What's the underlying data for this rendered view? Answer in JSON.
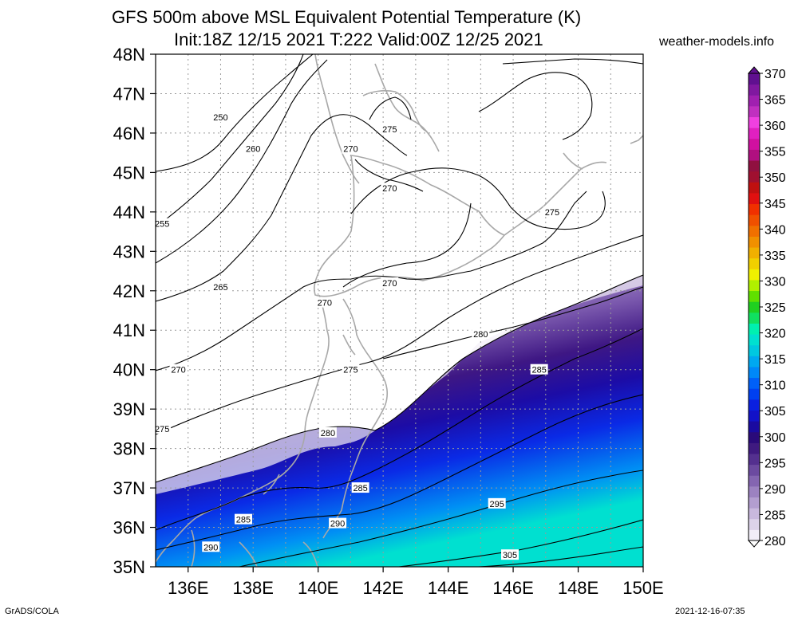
{
  "title_line1": "GFS 500m above MSL Equivalent Potential Temperature (K)",
  "title_line2": "Init:18Z 12/15 2021 T:222 Valid:00Z 12/25 2021",
  "credit": "weather-models.info",
  "footer_left": "GrADS/COLA",
  "footer_right": "2021-12-16-07:35",
  "map": {
    "lon_range": [
      135,
      150
    ],
    "lat_range": [
      35,
      48
    ],
    "lat_labels": [
      "35N",
      "36N",
      "37N",
      "38N",
      "39N",
      "40N",
      "41N",
      "42N",
      "43N",
      "44N",
      "45N",
      "46N",
      "47N",
      "48N"
    ],
    "lon_labels": [
      "136E",
      "138E",
      "140E",
      "142E",
      "144E",
      "146E",
      "148E",
      "150E"
    ],
    "lon_label_values": [
      136,
      138,
      140,
      142,
      144,
      146,
      148,
      150
    ]
  },
  "colorbar": {
    "labels": [
      "280",
      "285",
      "290",
      "295",
      "300",
      "305",
      "310",
      "315",
      "320",
      "325",
      "330",
      "335",
      "340",
      "345",
      "350",
      "355",
      "360",
      "365",
      "370"
    ],
    "colors": [
      "#f2eef8",
      "#ddd3ea",
      "#c9b8de",
      "#b39ed0",
      "#9c82c1",
      "#8465b1",
      "#6c4aa0",
      "#54308f",
      "#3f1a80",
      "#2a0a7a",
      "#1a0aa0",
      "#1212c8",
      "#0a20e0",
      "#0040f0",
      "#0060f8",
      "#0088f8",
      "#00a8f0",
      "#00c8e0",
      "#00e0d0",
      "#00f0b0",
      "#10e060",
      "#20d020",
      "#60e000",
      "#b0f000",
      "#f0f000",
      "#f0d000",
      "#f0b000",
      "#f09000",
      "#f07000",
      "#f05000",
      "#f03000",
      "#e01010",
      "#c01010",
      "#a01030",
      "#901040",
      "#b01080",
      "#d010a0",
      "#e020c0",
      "#f040e0",
      "#c030c0",
      "#a020b0",
      "#8018a0",
      "#601090"
    ]
  },
  "contour_labels": [
    {
      "text": "250",
      "lon": 137.0,
      "lat": 46.4
    },
    {
      "text": "260",
      "lon": 138.0,
      "lat": 45.6
    },
    {
      "text": "255",
      "lon": 135.2,
      "lat": 43.7
    },
    {
      "text": "265",
      "lon": 137.0,
      "lat": 42.1
    },
    {
      "text": "270",
      "lon": 135.7,
      "lat": 40.0
    },
    {
      "text": "275",
      "lon": 135.2,
      "lat": 38.5
    },
    {
      "text": "270",
      "lon": 141.0,
      "lat": 45.6
    },
    {
      "text": "275",
      "lon": 142.2,
      "lat": 46.1
    },
    {
      "text": "270",
      "lon": 142.2,
      "lat": 44.6
    },
    {
      "text": "275",
      "lon": 147.2,
      "lat": 44.0
    },
    {
      "text": "270",
      "lon": 142.2,
      "lat": 42.2
    },
    {
      "text": "270",
      "lon": 140.2,
      "lat": 41.7
    },
    {
      "text": "275",
      "lon": 141.0,
      "lat": 40.0
    },
    {
      "text": "280",
      "lon": 145.0,
      "lat": 40.9
    },
    {
      "text": "285",
      "lon": 146.8,
      "lat": 40.0
    },
    {
      "text": "280",
      "lon": 140.3,
      "lat": 38.4
    },
    {
      "text": "285",
      "lon": 141.3,
      "lat": 37.0
    },
    {
      "text": "285",
      "lon": 137.7,
      "lat": 36.2
    },
    {
      "text": "290",
      "lon": 140.6,
      "lat": 36.1
    },
    {
      "text": "295",
      "lon": 145.5,
      "lat": 36.6
    },
    {
      "text": "290",
      "lon": 136.7,
      "lat": 35.5
    },
    {
      "text": "305",
      "lon": 145.9,
      "lat": 35.3
    }
  ]
}
